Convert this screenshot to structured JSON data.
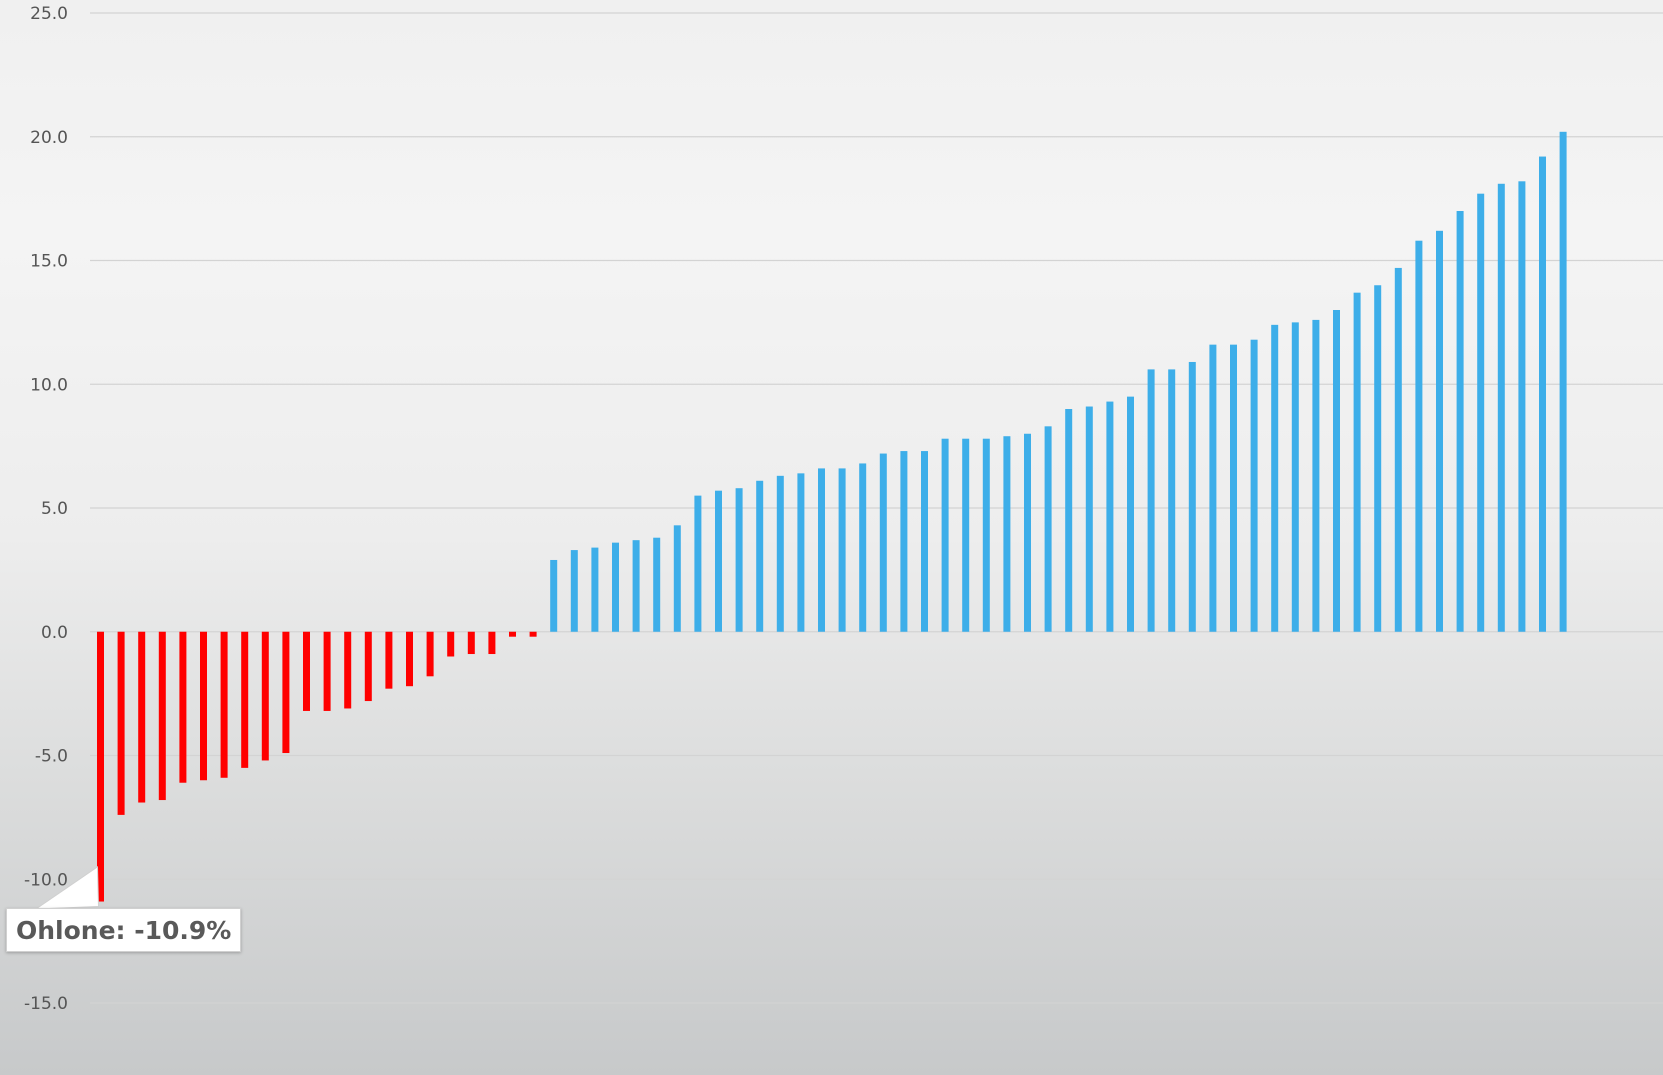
{
  "chart_data": {
    "type": "bar",
    "title": "",
    "xlabel": "",
    "ylabel": "",
    "ylim": [
      -15,
      25
    ],
    "y_ticks": [
      "25.0",
      "20.0",
      "15.0",
      "10.0",
      "5.0",
      "0.0",
      "-5.0",
      "-10.0",
      "-15.0"
    ],
    "y_tick_values": [
      25,
      20,
      15,
      10,
      5,
      0,
      -5,
      -10,
      -15
    ],
    "grid": true,
    "legend": "none",
    "colors": {
      "negative": "#ff0000",
      "positive": "#3daee9",
      "gridline": "#d3d3d3",
      "tick_text": "#555555"
    },
    "values": [
      -10.9,
      -7.4,
      -6.9,
      -6.8,
      -6.1,
      -6.0,
      -5.9,
      -5.5,
      -5.2,
      -4.9,
      -3.2,
      -3.2,
      -3.1,
      -2.8,
      -2.3,
      -2.2,
      -1.8,
      -1.0,
      -0.9,
      -0.9,
      -0.2,
      -0.2,
      2.9,
      3.3,
      3.4,
      3.6,
      3.7,
      3.8,
      4.3,
      5.5,
      5.7,
      5.8,
      6.1,
      6.3,
      6.4,
      6.6,
      6.6,
      6.8,
      7.2,
      7.3,
      7.3,
      7.8,
      7.8,
      7.8,
      7.9,
      8.0,
      8.3,
      9.0,
      9.1,
      9.3,
      9.5,
      10.6,
      10.6,
      10.9,
      11.6,
      11.6,
      11.8,
      12.4,
      12.5,
      12.6,
      13.0,
      13.7,
      14.0,
      14.7,
      15.8,
      16.2,
      17.0,
      17.7,
      18.1,
      18.2,
      19.2,
      20.2
    ],
    "annotation": {
      "bar_index": 0,
      "label": "Ohlone: -10.9%"
    }
  }
}
